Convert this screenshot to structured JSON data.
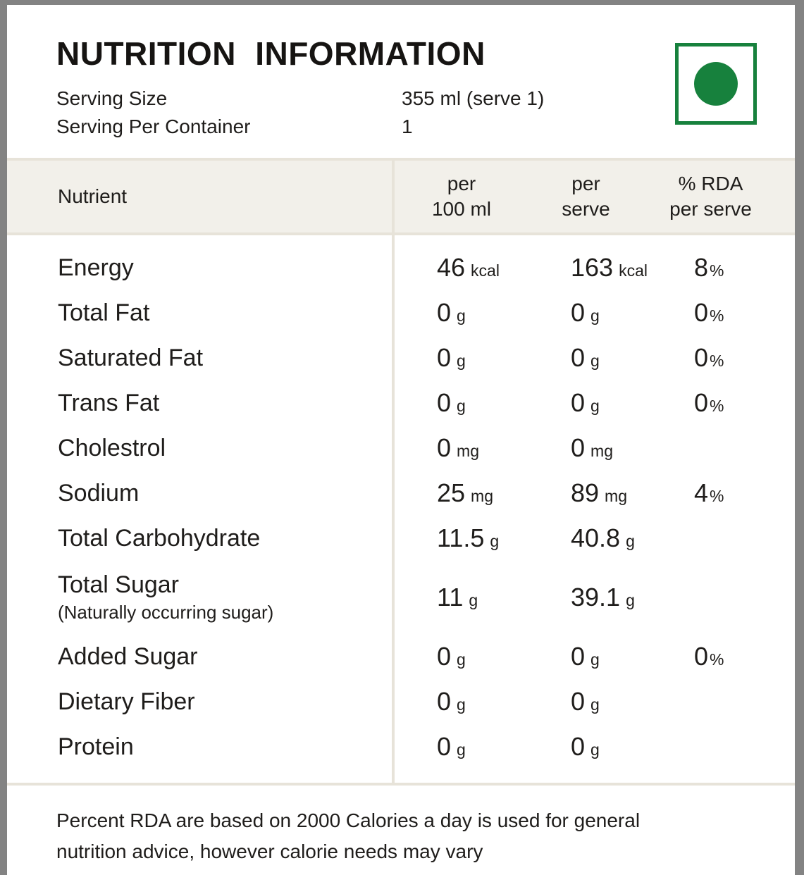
{
  "colors": {
    "accent_green": "#17813d",
    "frame_gray": "#838383",
    "rule_line": "#e7e3d9",
    "header_band": "#f2f0ea",
    "text": "#1f1d1b"
  },
  "header": {
    "title": "NUTRITION INFORMATION",
    "serving": [
      {
        "label": "Serving Size",
        "value": "355 ml (serve 1)"
      },
      {
        "label": "Serving Per Container",
        "value": "1"
      }
    ],
    "veg_mark": "vegetarian-mark"
  },
  "table": {
    "columns": {
      "nutrient": "Nutrient",
      "per100": [
        "per",
        "100 ml"
      ],
      "perserve": [
        "per",
        "serve"
      ],
      "rda": [
        "% RDA",
        "per serve"
      ]
    },
    "rows": [
      {
        "name": "Energy",
        "per100": {
          "v": "46",
          "u": "kcal"
        },
        "perserve": {
          "v": "163",
          "u": "kcal"
        },
        "rda": {
          "v": "8",
          "u": "%"
        }
      },
      {
        "name": "Total Fat",
        "per100": {
          "v": "0",
          "u": "g"
        },
        "perserve": {
          "v": "0",
          "u": "g"
        },
        "rda": {
          "v": "0",
          "u": "%"
        }
      },
      {
        "name": "Saturated Fat",
        "per100": {
          "v": "0",
          "u": "g"
        },
        "perserve": {
          "v": "0",
          "u": "g"
        },
        "rda": {
          "v": "0",
          "u": "%"
        }
      },
      {
        "name": "Trans Fat",
        "per100": {
          "v": "0",
          "u": "g"
        },
        "perserve": {
          "v": "0",
          "u": "g"
        },
        "rda": {
          "v": "0",
          "u": "%"
        }
      },
      {
        "name": "Cholestrol",
        "per100": {
          "v": "0",
          "u": "mg"
        },
        "perserve": {
          "v": "0",
          "u": "mg"
        },
        "rda": null
      },
      {
        "name": "Sodium",
        "per100": {
          "v": "25",
          "u": "mg"
        },
        "perserve": {
          "v": "89",
          "u": "mg"
        },
        "rda": {
          "v": "4",
          "u": "%"
        }
      },
      {
        "name": "Total Carbohydrate",
        "per100": {
          "v": "11.5",
          "u": "g"
        },
        "perserve": {
          "v": "40.8",
          "u": "g"
        },
        "rda": null
      },
      {
        "name": "Total Sugar",
        "sub": "(Naturally occurring sugar)",
        "per100": {
          "v": "11",
          "u": "g"
        },
        "perserve": {
          "v": "39.1",
          "u": "g"
        },
        "rda": null
      },
      {
        "name": "Added Sugar",
        "per100": {
          "v": "0",
          "u": "g"
        },
        "perserve": {
          "v": "0",
          "u": "g"
        },
        "rda": {
          "v": "0",
          "u": "%"
        }
      },
      {
        "name": "Dietary Fiber",
        "per100": {
          "v": "0",
          "u": "g"
        },
        "perserve": {
          "v": "0",
          "u": "g"
        },
        "rda": null
      },
      {
        "name": "Protein",
        "per100": {
          "v": "0",
          "u": "g"
        },
        "perserve": {
          "v": "0",
          "u": "g"
        },
        "rda": null
      }
    ]
  },
  "footer": {
    "lines": [
      "Percent RDA are based on 2000 Calories a day is used for general",
      "nutrition advice, however calorie needs may vary"
    ]
  }
}
